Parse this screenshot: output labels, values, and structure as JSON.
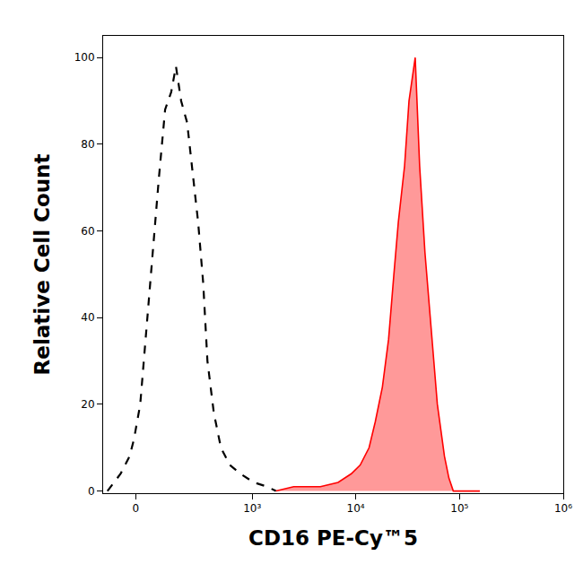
{
  "chart_data": {
    "type": "line",
    "x_label": "CD16 PE-Cy™5",
    "y_label": "Relative Cell Count",
    "xlim": [
      -120,
      1000000
    ],
    "xticks": [
      0,
      {
        "value": 1000,
        "label": "10³"
      },
      {
        "value": 10000,
        "label": "10⁴"
      },
      {
        "value": 100000,
        "label": "10⁵"
      },
      {
        "value": 1000000,
        "label": "10⁶"
      }
    ],
    "ylim": [
      -0.5,
      105
    ],
    "yticks": [
      0,
      20,
      40,
      60,
      80,
      100
    ],
    "grid": false,
    "series": [
      {
        "type": "line",
        "color": "#000000",
        "line_style": "dashed",
        "x": [
          -102,
          -52,
          -21,
          -6,
          15,
          39,
          61,
          81,
          106,
          132,
          154,
          180,
          213,
          241,
          284,
          322,
          357,
          416,
          491,
          603,
          767,
          1034,
          1397,
          1701
        ],
        "values": [
          0,
          4,
          8,
          12,
          20,
          40,
          58,
          72,
          88,
          92,
          98,
          90,
          85,
          75,
          62,
          48,
          30,
          18,
          10,
          6,
          4,
          2,
          1,
          0
        ]
      },
      {
        "type": "area",
        "color": "#ff0000",
        "line_style": "solid",
        "x": [
          1701,
          2520,
          4560,
          6760,
          9080,
          11050,
          13450,
          15440,
          18070,
          20730,
          23330,
          25740,
          29560,
          32620,
          37440,
          41310,
          46480,
          53320,
          61180,
          71660,
          79040,
          87170,
          157000
        ],
        "values": [
          0,
          1,
          1,
          2,
          4,
          6,
          10,
          16,
          24,
          35,
          50,
          62,
          75,
          90,
          100,
          75,
          55,
          38,
          20,
          8,
          3,
          0,
          0
        ]
      }
    ]
  }
}
